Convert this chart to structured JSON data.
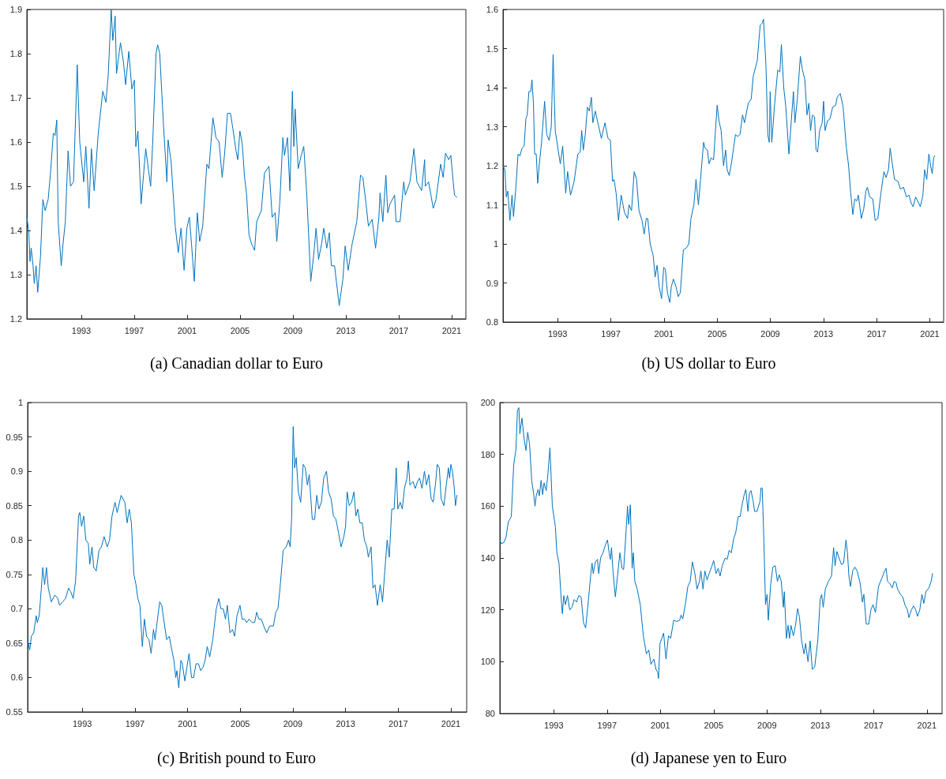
{
  "chart_data": [
    {
      "type": "line",
      "title": "(a) Canadian dollar to Euro",
      "color": "#0072bd",
      "grid": false,
      "marker": "none",
      "line_style": "solid",
      "xlim": [
        1988.88,
        2022.08
      ],
      "xticks": [
        1993,
        1997,
        2001,
        2005,
        2009,
        2013,
        2017,
        2021
      ],
      "ylim": [
        1.2,
        1.9
      ],
      "yticks": [
        1.2,
        1.3,
        1.4,
        1.5,
        1.6,
        1.7,
        1.8,
        1.9
      ],
      "x": [
        1988.88,
        1989.02,
        1989.12,
        1989.21,
        1989.35,
        1989.44,
        1989.58,
        1989.7,
        1989.91,
        1990.09,
        1990.26,
        1990.49,
        1990.67,
        1990.88,
        1991.02,
        1991.14,
        1991.25,
        1991.48,
        1991.62,
        1991.79,
        1992.0,
        1992.18,
        1992.41,
        1992.69,
        1992.88,
        1993.18,
        1993.34,
        1993.58,
        1993.76,
        1993.97,
        1994.28,
        1994.62,
        1994.86,
        1995.03,
        1995.26,
        1995.38,
        1995.56,
        1995.66,
        1995.96,
        1996.19,
        1996.35,
        1996.59,
        1996.82,
        1997.01,
        1997.12,
        1997.28,
        1997.52,
        1997.87,
        1998.24,
        1998.4,
        1998.65,
        1998.77,
        1998.93,
        1999.21,
        1999.47,
        1999.56,
        1999.79,
        2000.1,
        2000.33,
        2000.54,
        2000.77,
        2000.98,
        2001.17,
        2001.33,
        2001.54,
        2001.77,
        2001.95,
        2002.18,
        2002.49,
        2002.65,
        2002.95,
        2003.18,
        2003.42,
        2003.65,
        2003.84,
        2004.05,
        2004.28,
        2004.46,
        2004.7,
        2004.83,
        2004.99,
        2005.15,
        2005.22,
        2005.33,
        2005.5,
        2005.68,
        2005.87,
        2006.1,
        2006.26,
        2006.61,
        2006.85,
        2007.19,
        2007.43,
        2007.66,
        2007.78,
        2008.01,
        2008.24,
        2008.36,
        2008.59,
        2008.77,
        2008.96,
        2009.07,
        2009.17,
        2009.4,
        2009.63,
        2009.82,
        2010.05,
        2010.35,
        2010.59,
        2010.75,
        2010.94,
        2011.17,
        2011.33,
        2011.56,
        2011.75,
        2011.91,
        2012.15,
        2012.5,
        2012.78,
        2012.95,
        2013.18,
        2013.48,
        2013.83,
        2014.11,
        2014.29,
        2014.53,
        2014.71,
        2014.99,
        2015.25,
        2015.5,
        2015.59,
        2015.8,
        2016.03,
        2016.17,
        2016.34,
        2016.69,
        2016.8,
        2017.1,
        2017.38,
        2017.5,
        2017.85,
        2018.15,
        2018.38,
        2018.73,
        2018.96,
        2019.01,
        2019.26,
        2019.61,
        2019.82,
        2020.17,
        2020.36,
        2020.54,
        2020.78,
        2020.94,
        2021.12,
        2021.22,
        2021.4
      ],
      "values": [
        1.43,
        1.4,
        1.33,
        1.36,
        1.32,
        1.28,
        1.32,
        1.26,
        1.34,
        1.47,
        1.445,
        1.47,
        1.53,
        1.62,
        1.615,
        1.65,
        1.42,
        1.32,
        1.37,
        1.42,
        1.58,
        1.5,
        1.51,
        1.775,
        1.6,
        1.51,
        1.59,
        1.45,
        1.585,
        1.49,
        1.62,
        1.715,
        1.69,
        1.75,
        1.9,
        1.83,
        1.885,
        1.755,
        1.825,
        1.78,
        1.73,
        1.805,
        1.72,
        1.74,
        1.59,
        1.625,
        1.46,
        1.585,
        1.5,
        1.6,
        1.8,
        1.82,
        1.8,
        1.64,
        1.51,
        1.605,
        1.555,
        1.41,
        1.35,
        1.405,
        1.31,
        1.405,
        1.43,
        1.37,
        1.285,
        1.44,
        1.375,
        1.41,
        1.55,
        1.54,
        1.655,
        1.61,
        1.6,
        1.52,
        1.575,
        1.665,
        1.665,
        1.63,
        1.58,
        1.56,
        1.625,
        1.6,
        1.575,
        1.525,
        1.48,
        1.39,
        1.37,
        1.355,
        1.42,
        1.445,
        1.53,
        1.545,
        1.43,
        1.44,
        1.375,
        1.465,
        1.61,
        1.57,
        1.61,
        1.49,
        1.715,
        1.59,
        1.675,
        1.54,
        1.57,
        1.59,
        1.48,
        1.285,
        1.35,
        1.405,
        1.335,
        1.37,
        1.405,
        1.36,
        1.395,
        1.32,
        1.32,
        1.23,
        1.29,
        1.365,
        1.31,
        1.37,
        1.42,
        1.525,
        1.52,
        1.46,
        1.41,
        1.425,
        1.36,
        1.43,
        1.485,
        1.42,
        1.525,
        1.44,
        1.46,
        1.48,
        1.42,
        1.42,
        1.51,
        1.48,
        1.51,
        1.585,
        1.51,
        1.49,
        1.56,
        1.5,
        1.51,
        1.45,
        1.47,
        1.55,
        1.52,
        1.575,
        1.56,
        1.57,
        1.51,
        1.48,
        1.475
      ]
    },
    {
      "type": "line",
      "title": "(b) US dollar to Euro",
      "color": "#0072bd",
      "grid": false,
      "marker": "none",
      "line_style": "solid",
      "xlim": [
        1988.89,
        2022.04
      ],
      "xticks": [
        1993,
        1997,
        2001,
        2005,
        2009,
        2013,
        2017,
        2021
      ],
      "ylim": [
        0.8,
        1.6
      ],
      "yticks": [
        0.8,
        0.9,
        1,
        1.1,
        1.2,
        1.3,
        1.4,
        1.5,
        1.6
      ],
      "x": [
        1988.89,
        1989.03,
        1989.14,
        1989.25,
        1989.41,
        1989.57,
        1989.68,
        1989.87,
        1990.02,
        1990.16,
        1990.32,
        1990.48,
        1990.61,
        1990.71,
        1990.84,
        1990.98,
        1991.07,
        1991.18,
        1991.27,
        1991.39,
        1991.5,
        1991.61,
        1991.79,
        1992.02,
        1992.18,
        1992.36,
        1992.52,
        1992.66,
        1992.82,
        1993.04,
        1993.2,
        1993.38,
        1993.61,
        1993.75,
        1993.97,
        1994.24,
        1994.52,
        1994.7,
        1994.81,
        1994.93,
        1995.08,
        1995.24,
        1995.38,
        1995.54,
        1995.65,
        1995.83,
        1996.06,
        1996.29,
        1996.56,
        1996.79,
        1996.97,
        1997.13,
        1997.24,
        1997.4,
        1997.58,
        1997.78,
        1998.03,
        1998.26,
        1998.37,
        1998.56,
        1998.76,
        1998.94,
        1999.12,
        1999.35,
        1999.51,
        1999.67,
        1999.78,
        1999.96,
        2000.19,
        2000.33,
        2000.48,
        2000.64,
        2000.82,
        2000.98,
        2001.1,
        2001.26,
        2001.44,
        2001.55,
        2001.71,
        2001.91,
        2002.07,
        2002.23,
        2002.46,
        2002.69,
        2002.87,
        2003.03,
        2003.25,
        2003.41,
        2003.59,
        2003.75,
        2003.98,
        2004.09,
        2004.27,
        2004.39,
        2004.55,
        2004.73,
        2005.0,
        2005.14,
        2005.3,
        2005.48,
        2005.64,
        2005.75,
        2005.91,
        2006.09,
        2006.38,
        2006.54,
        2006.72,
        2006.91,
        2007.06,
        2007.34,
        2007.56,
        2007.72,
        2008.02,
        2008.24,
        2008.4,
        2008.49,
        2008.67,
        2008.81,
        2008.92,
        2008.99,
        2009.11,
        2009.33,
        2009.56,
        2009.72,
        2009.83,
        2010.01,
        2010.17,
        2010.4,
        2010.58,
        2010.74,
        2010.85,
        2011.03,
        2011.26,
        2011.42,
        2011.6,
        2011.76,
        2011.9,
        2012.03,
        2012.17,
        2012.33,
        2012.44,
        2012.56,
        2012.71,
        2012.9,
        2013.01,
        2013.12,
        2013.3,
        2013.49,
        2013.69,
        2013.92,
        2014.03,
        2014.26,
        2014.48,
        2014.71,
        2014.89,
        2015.05,
        2015.21,
        2015.35,
        2015.51,
        2015.62,
        2015.85,
        2016.03,
        2016.19,
        2016.3,
        2016.48,
        2016.71,
        2016.89,
        2017.09,
        2017.32,
        2017.55,
        2017.71,
        2017.89,
        2018.02,
        2018.16,
        2018.34,
        2018.61,
        2018.79,
        2019.02,
        2019.25,
        2019.43,
        2019.59,
        2019.75,
        2019.93,
        2020.16,
        2020.29,
        2020.48,
        2020.61,
        2020.77,
        2020.93,
        2021.06,
        2021.18,
        2021.29,
        2021.36
      ],
      "values": [
        1.2,
        1.19,
        1.12,
        1.135,
        1.06,
        1.125,
        1.07,
        1.15,
        1.23,
        1.225,
        1.245,
        1.25,
        1.32,
        1.33,
        1.39,
        1.39,
        1.42,
        1.36,
        1.23,
        1.23,
        1.155,
        1.2,
        1.26,
        1.365,
        1.28,
        1.265,
        1.3,
        1.485,
        1.29,
        1.24,
        1.205,
        1.25,
        1.13,
        1.185,
        1.125,
        1.16,
        1.23,
        1.235,
        1.29,
        1.24,
        1.28,
        1.35,
        1.34,
        1.375,
        1.31,
        1.34,
        1.305,
        1.27,
        1.31,
        1.27,
        1.265,
        1.16,
        1.165,
        1.13,
        1.06,
        1.125,
        1.08,
        1.065,
        1.1,
        1.085,
        1.185,
        1.165,
        1.085,
        1.06,
        1.025,
        1.065,
        1.065,
        1.0,
        0.97,
        0.915,
        0.945,
        0.89,
        0.86,
        0.94,
        0.935,
        0.875,
        0.85,
        0.89,
        0.91,
        0.89,
        0.865,
        0.875,
        0.985,
        0.99,
        1.0,
        1.065,
        1.1,
        1.165,
        1.1,
        1.165,
        1.26,
        1.245,
        1.24,
        1.205,
        1.22,
        1.215,
        1.355,
        1.315,
        1.29,
        1.2,
        1.24,
        1.19,
        1.175,
        1.21,
        1.28,
        1.275,
        1.28,
        1.33,
        1.31,
        1.36,
        1.37,
        1.43,
        1.47,
        1.56,
        1.565,
        1.575,
        1.46,
        1.28,
        1.26,
        1.39,
        1.26,
        1.36,
        1.445,
        1.44,
        1.51,
        1.4,
        1.35,
        1.23,
        1.315,
        1.39,
        1.31,
        1.37,
        1.48,
        1.445,
        1.42,
        1.33,
        1.36,
        1.29,
        1.33,
        1.325,
        1.24,
        1.235,
        1.29,
        1.31,
        1.365,
        1.29,
        1.315,
        1.32,
        1.35,
        1.355,
        1.375,
        1.385,
        1.35,
        1.25,
        1.2,
        1.13,
        1.075,
        1.115,
        1.11,
        1.125,
        1.065,
        1.09,
        1.135,
        1.145,
        1.12,
        1.115,
        1.06,
        1.065,
        1.13,
        1.185,
        1.17,
        1.19,
        1.245,
        1.21,
        1.165,
        1.16,
        1.14,
        1.145,
        1.12,
        1.125,
        1.105,
        1.095,
        1.12,
        1.105,
        1.095,
        1.125,
        1.19,
        1.165,
        1.23,
        1.2,
        1.18,
        1.22,
        1.225
      ]
    },
    {
      "type": "line",
      "title": "(c) British pound to Euro",
      "color": "#0072bd",
      "grid": false,
      "marker": "none",
      "line_style": "solid",
      "xlim": [
        1988.85,
        2022.2
      ],
      "xticks": [
        1993,
        1997,
        2001,
        2005,
        2009,
        2013,
        2017,
        2021
      ],
      "ylim": [
        0.55,
        1
      ],
      "yticks": [
        0.55,
        0.6,
        0.65,
        0.7,
        0.75,
        0.8,
        0.85,
        0.9,
        0.95,
        1
      ],
      "x": [
        1988.9,
        1989.01,
        1989.13,
        1989.31,
        1989.5,
        1989.59,
        1989.73,
        1989.89,
        1990.0,
        1990.14,
        1990.28,
        1990.42,
        1990.65,
        1990.92,
        1991.15,
        1991.27,
        1991.5,
        1991.73,
        1991.96,
        1992.12,
        1992.31,
        1992.49,
        1992.72,
        1992.81,
        1992.95,
        1993.11,
        1993.27,
        1993.46,
        1993.57,
        1993.74,
        1993.87,
        1994.06,
        1994.27,
        1994.45,
        1994.66,
        1994.89,
        1995.07,
        1995.26,
        1995.49,
        1995.65,
        1995.95,
        1996.23,
        1996.41,
        1996.57,
        1996.73,
        1996.92,
        1997.08,
        1997.22,
        1997.38,
        1997.56,
        1997.72,
        1997.88,
        1998.07,
        1998.23,
        1998.41,
        1998.53,
        1998.65,
        1998.88,
        1999.04,
        1999.22,
        1999.41,
        1999.61,
        1999.8,
        1999.96,
        2000.1,
        2000.19,
        2000.33,
        2000.49,
        2000.6,
        2000.79,
        2000.95,
        2001.11,
        2001.3,
        2001.46,
        2001.64,
        2001.83,
        2001.99,
        2002.17,
        2002.33,
        2002.49,
        2002.68,
        2002.91,
        2003.18,
        2003.37,
        2003.53,
        2003.71,
        2003.88,
        2004.02,
        2004.22,
        2004.41,
        2004.57,
        2004.75,
        2004.98,
        2005.14,
        2005.33,
        2005.49,
        2005.67,
        2005.9,
        2006.09,
        2006.25,
        2006.41,
        2006.6,
        2006.78,
        2007.01,
        2007.24,
        2007.52,
        2007.7,
        2007.86,
        2008.02,
        2008.26,
        2008.49,
        2008.67,
        2008.79,
        2008.9,
        2009.02,
        2009.13,
        2009.25,
        2009.41,
        2009.59,
        2009.78,
        2009.94,
        2010.1,
        2010.24,
        2010.47,
        2010.65,
        2010.81,
        2010.97,
        2011.16,
        2011.34,
        2011.55,
        2011.71,
        2011.9,
        2012.08,
        2012.27,
        2012.47,
        2012.66,
        2012.87,
        2013.0,
        2013.12,
        2013.28,
        2013.46,
        2013.63,
        2013.79,
        2013.93,
        2014.09,
        2014.27,
        2014.43,
        2014.62,
        2014.73,
        2014.94,
        2015.08,
        2015.24,
        2015.42,
        2015.63,
        2015.81,
        2015.98,
        2016.16,
        2016.32,
        2016.51,
        2016.69,
        2016.85,
        2016.97,
        2017.15,
        2017.31,
        2017.47,
        2017.66,
        2017.77,
        2017.89,
        2018.12,
        2018.3,
        2018.46,
        2018.62,
        2018.81,
        2018.99,
        2019.15,
        2019.32,
        2019.5,
        2019.66,
        2019.85,
        2019.96,
        2020.12,
        2020.26,
        2020.47,
        2020.65,
        2020.81,
        2020.9,
        2021.0,
        2021.12,
        2021.26,
        2021.35,
        2021.46
      ],
      "values": [
        0.65,
        0.64,
        0.66,
        0.665,
        0.69,
        0.68,
        0.69,
        0.73,
        0.76,
        0.735,
        0.76,
        0.73,
        0.71,
        0.72,
        0.715,
        0.705,
        0.71,
        0.715,
        0.73,
        0.725,
        0.715,
        0.74,
        0.835,
        0.84,
        0.82,
        0.835,
        0.8,
        0.795,
        0.765,
        0.79,
        0.76,
        0.755,
        0.785,
        0.79,
        0.805,
        0.79,
        0.8,
        0.835,
        0.855,
        0.84,
        0.865,
        0.855,
        0.825,
        0.845,
        0.825,
        0.75,
        0.735,
        0.715,
        0.705,
        0.645,
        0.685,
        0.66,
        0.655,
        0.635,
        0.67,
        0.655,
        0.675,
        0.71,
        0.705,
        0.68,
        0.655,
        0.66,
        0.64,
        0.625,
        0.6,
        0.61,
        0.585,
        0.625,
        0.62,
        0.595,
        0.615,
        0.635,
        0.6,
        0.6,
        0.62,
        0.62,
        0.61,
        0.615,
        0.625,
        0.645,
        0.63,
        0.655,
        0.7,
        0.715,
        0.7,
        0.7,
        0.685,
        0.705,
        0.665,
        0.67,
        0.66,
        0.69,
        0.705,
        0.685,
        0.685,
        0.68,
        0.685,
        0.68,
        0.68,
        0.695,
        0.685,
        0.685,
        0.675,
        0.665,
        0.675,
        0.675,
        0.695,
        0.7,
        0.73,
        0.785,
        0.79,
        0.8,
        0.79,
        0.83,
        0.965,
        0.905,
        0.92,
        0.87,
        0.855,
        0.91,
        0.905,
        0.88,
        0.895,
        0.83,
        0.83,
        0.865,
        0.845,
        0.855,
        0.89,
        0.9,
        0.87,
        0.86,
        0.835,
        0.83,
        0.81,
        0.79,
        0.805,
        0.82,
        0.87,
        0.85,
        0.855,
        0.87,
        0.835,
        0.845,
        0.825,
        0.825,
        0.8,
        0.79,
        0.775,
        0.79,
        0.73,
        0.735,
        0.705,
        0.735,
        0.71,
        0.755,
        0.8,
        0.775,
        0.845,
        0.845,
        0.905,
        0.845,
        0.855,
        0.845,
        0.875,
        0.89,
        0.915,
        0.88,
        0.885,
        0.875,
        0.885,
        0.89,
        0.875,
        0.9,
        0.88,
        0.895,
        0.86,
        0.855,
        0.885,
        0.91,
        0.905,
        0.86,
        0.85,
        0.88,
        0.905,
        0.89,
        0.91,
        0.9,
        0.875,
        0.85,
        0.865
      ]
    },
    {
      "type": "line",
      "title": "(d) Japanese yen to Euro",
      "color": "#0072bd",
      "grid": false,
      "marker": "none",
      "line_style": "solid",
      "xlim": [
        1988.95,
        2022.14
      ],
      "xticks": [
        1993,
        1997,
        2001,
        2005,
        2009,
        2013,
        2017,
        2021
      ],
      "ylim": [
        80,
        200
      ],
      "yticks": [
        80,
        100,
        120,
        140,
        160,
        180,
        200
      ],
      "x": [
        1988.95,
        1989.06,
        1989.25,
        1989.41,
        1989.59,
        1989.81,
        1989.99,
        1990.16,
        1990.27,
        1990.38,
        1990.45,
        1990.61,
        1990.77,
        1990.91,
        1991.04,
        1991.18,
        1991.34,
        1991.48,
        1991.59,
        1991.68,
        1991.82,
        1991.91,
        1992.05,
        1992.16,
        1992.27,
        1992.43,
        1992.55,
        1992.71,
        1992.89,
        1993.12,
        1993.23,
        1993.39,
        1993.53,
        1993.64,
        1993.75,
        1993.87,
        1994.03,
        1994.19,
        1994.37,
        1994.53,
        1994.71,
        1994.87,
        1995.05,
        1995.23,
        1995.39,
        1995.62,
        1995.78,
        1995.87,
        1995.96,
        1996.12,
        1996.28,
        1996.37,
        1996.51,
        1996.69,
        1996.87,
        1997.03,
        1997.15,
        1997.24,
        1997.33,
        1997.44,
        1997.62,
        1997.78,
        1997.96,
        1998.12,
        1998.24,
        1998.42,
        1998.53,
        1998.62,
        1998.74,
        1998.88,
        1998.97,
        1999.08,
        1999.26,
        1999.49,
        1999.72,
        1999.95,
        2000.13,
        2000.29,
        2000.51,
        2000.67,
        2000.79,
        2000.86,
        2000.97,
        2001.24,
        2001.42,
        2001.61,
        2001.77,
        2002.0,
        2002.22,
        2002.45,
        2002.55,
        2002.68,
        2002.9,
        2003.06,
        2003.24,
        2003.4,
        2003.59,
        2003.75,
        2003.93,
        2004.04,
        2004.2,
        2004.34,
        2004.5,
        2004.66,
        2004.84,
        2005.0,
        2005.18,
        2005.34,
        2005.48,
        2005.64,
        2005.86,
        2006.02,
        2006.16,
        2006.32,
        2006.48,
        2006.66,
        2006.84,
        2006.99,
        2007.11,
        2007.27,
        2007.41,
        2007.57,
        2007.68,
        2007.8,
        2007.96,
        2008.07,
        2008.25,
        2008.48,
        2008.55,
        2008.64,
        2008.75,
        2008.89,
        2009.01,
        2009.1,
        2009.28,
        2009.44,
        2009.62,
        2009.78,
        2009.92,
        2010.07,
        2010.23,
        2010.3,
        2010.46,
        2010.58,
        2010.69,
        2010.8,
        2010.98,
        2011.14,
        2011.3,
        2011.44,
        2011.6,
        2011.78,
        2011.9,
        2012.08,
        2012.24,
        2012.4,
        2012.58,
        2012.81,
        2012.99,
        2013.1,
        2013.22,
        2013.38,
        2013.61,
        2013.84,
        2014.0,
        2014.11,
        2014.25,
        2014.41,
        2014.59,
        2014.75,
        2014.93,
        2015.04,
        2015.15,
        2015.27,
        2015.43,
        2015.59,
        2015.77,
        2016.0,
        2016.16,
        2016.27,
        2016.45,
        2016.64,
        2016.8,
        2016.96,
        2017.14,
        2017.37,
        2017.6,
        2017.83,
        2017.94,
        2018.05,
        2018.24,
        2018.4,
        2018.55,
        2018.69,
        2018.8,
        2019.01,
        2019.19,
        2019.35,
        2019.54,
        2019.65,
        2019.84,
        2020.0,
        2020.16,
        2020.3,
        2020.47,
        2020.63,
        2020.77,
        2020.93,
        2021.16,
        2021.32,
        2021.43
      ],
      "values": [
        147,
        145.5,
        146,
        148,
        154,
        156,
        176,
        182,
        197,
        198,
        188,
        194,
        186,
        181.5,
        188.5,
        184,
        170,
        165,
        160,
        164,
        166.5,
        164,
        170,
        164.5,
        169,
        166,
        172,
        182.5,
        160,
        152,
        142,
        138,
        126,
        118.5,
        125.5,
        122,
        125.5,
        120,
        121,
        124,
        123,
        125.5,
        125,
        115,
        113,
        125,
        134,
        138,
        134,
        138.5,
        139.5,
        134,
        140,
        142,
        145,
        147,
        142,
        139.5,
        144,
        135,
        125,
        133,
        142,
        136,
        135.5,
        150,
        160,
        153,
        160.5,
        136,
        142,
        131,
        128,
        122,
        110,
        103,
        104.5,
        99,
        101,
        97,
        96,
        93.5,
        107,
        111,
        101,
        110,
        109,
        116,
        115.5,
        116,
        118,
        116.5,
        123,
        129,
        131,
        138.5,
        134,
        128,
        131,
        135,
        128,
        135,
        131.5,
        134,
        136.5,
        139,
        134,
        136,
        133,
        137,
        140,
        139.5,
        143,
        142,
        147,
        150,
        156,
        156,
        160,
        164,
        166.5,
        158,
        165,
        166,
        162,
        158,
        158,
        162,
        167,
        167,
        150,
        122,
        126,
        116,
        130,
        136.5,
        137,
        131,
        133.5,
        131,
        121,
        127,
        109,
        114,
        109,
        114,
        110,
        114,
        120.5,
        117,
        108,
        103,
        107,
        100,
        108,
        97,
        98,
        108,
        124,
        126,
        121,
        128,
        131,
        133,
        144,
        137,
        142.5,
        140,
        137.5,
        138,
        147,
        142,
        133,
        129,
        135,
        136.5,
        135,
        130,
        123,
        126,
        114.5,
        114.5,
        120,
        122,
        119,
        129,
        132,
        135,
        136,
        131,
        130,
        128.5,
        131,
        130.5,
        128,
        126,
        125,
        122,
        120,
        117,
        120,
        121.5,
        120,
        117.5,
        120,
        126,
        122.5,
        127,
        128.5,
        131,
        134
      ]
    }
  ]
}
